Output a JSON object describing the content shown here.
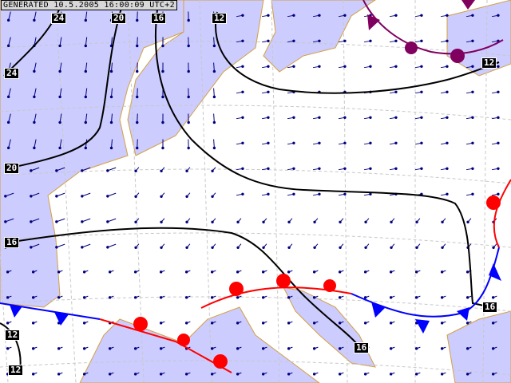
{
  "header": {
    "generated_text": "GENERATED 10.5.2005 16:00:09 UTC+2"
  },
  "colors": {
    "sea": "#ccccff",
    "land": "#ffffff",
    "border": "#d4a040",
    "isobar": "#000000",
    "warm_front": "#ff0000",
    "cold_front": "#0000ff",
    "occluded_front": "#800060",
    "wind": "#000080",
    "grid": "#c0c0c0"
  },
  "isobar_labels": [
    "24",
    "20",
    "16",
    "12",
    "12",
    "24",
    "20",
    "16",
    "16",
    "12",
    "12",
    "16"
  ],
  "fronts": [
    "warm",
    "cold",
    "occluded"
  ],
  "icons": {
    "wind_barb": "wind-arrow-icon",
    "warm_symbol": "semicircle",
    "cold_symbol": "triangle"
  }
}
